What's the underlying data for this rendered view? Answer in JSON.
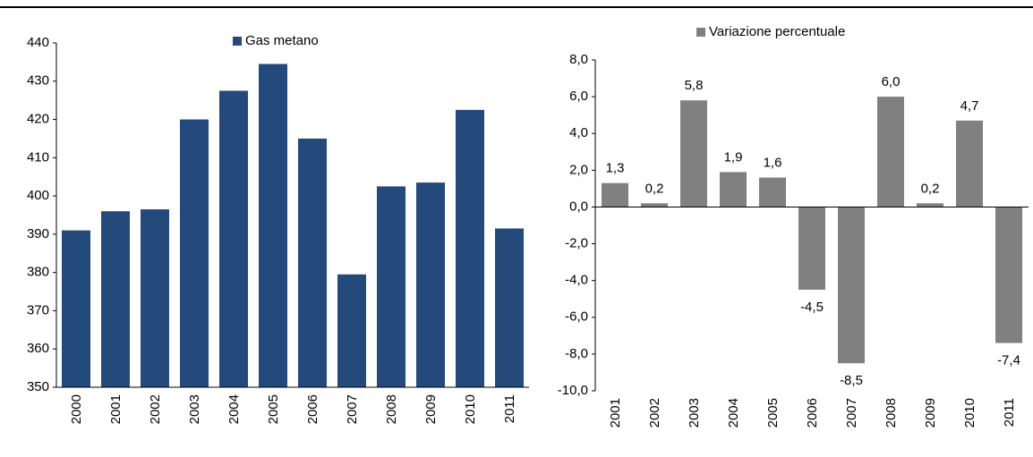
{
  "chart_data": [
    {
      "type": "bar",
      "categories": [
        "2000",
        "2001",
        "2002",
        "2003",
        "2004",
        "2005",
        "2006",
        "2007",
        "2008",
        "2009",
        "2010",
        "2011"
      ],
      "series": [
        {
          "name": "Gas metano",
          "color": "#244a7c",
          "values": [
            391,
            396,
            396.5,
            420,
            427.5,
            434.5,
            415,
            379.5,
            402.5,
            403.5,
            422.5,
            391.5
          ]
        }
      ],
      "ylim": [
        350,
        440
      ],
      "yticks": [
        350,
        360,
        370,
        380,
        390,
        400,
        410,
        420,
        430,
        440
      ],
      "legend": "top"
    },
    {
      "type": "bar",
      "categories": [
        "2001",
        "2002",
        "2003",
        "2004",
        "2005",
        "2006",
        "2007",
        "2008",
        "2009",
        "2010",
        "2011"
      ],
      "series": [
        {
          "name": "Variazione percentuale",
          "color": "#808080",
          "values": [
            1.3,
            0.2,
            5.8,
            1.9,
            1.6,
            -4.5,
            -8.5,
            6.0,
            0.2,
            4.7,
            -7.4
          ],
          "value_labels": [
            "1,3",
            "0,2",
            "5,8",
            "1,9",
            "1,6",
            "-4,5",
            "-8,5",
            "6,0",
            "0,2",
            "4,7",
            "-7,4"
          ]
        }
      ],
      "ylim": [
        -10,
        8
      ],
      "yticks": [
        {
          "value": -10,
          "label": "-10,0"
        },
        {
          "value": -8,
          "label": "-8,0"
        },
        {
          "value": -6,
          "label": "-6,0"
        },
        {
          "value": -4,
          "label": "-4,0"
        },
        {
          "value": -2,
          "label": "-2,0"
        },
        {
          "value": 0,
          "label": "0,0"
        },
        {
          "value": 2,
          "label": "2,0"
        },
        {
          "value": 4,
          "label": "4,0"
        },
        {
          "value": 6,
          "label": "6,0"
        },
        {
          "value": 8,
          "label": "8,0"
        }
      ],
      "legend": "top"
    }
  ]
}
